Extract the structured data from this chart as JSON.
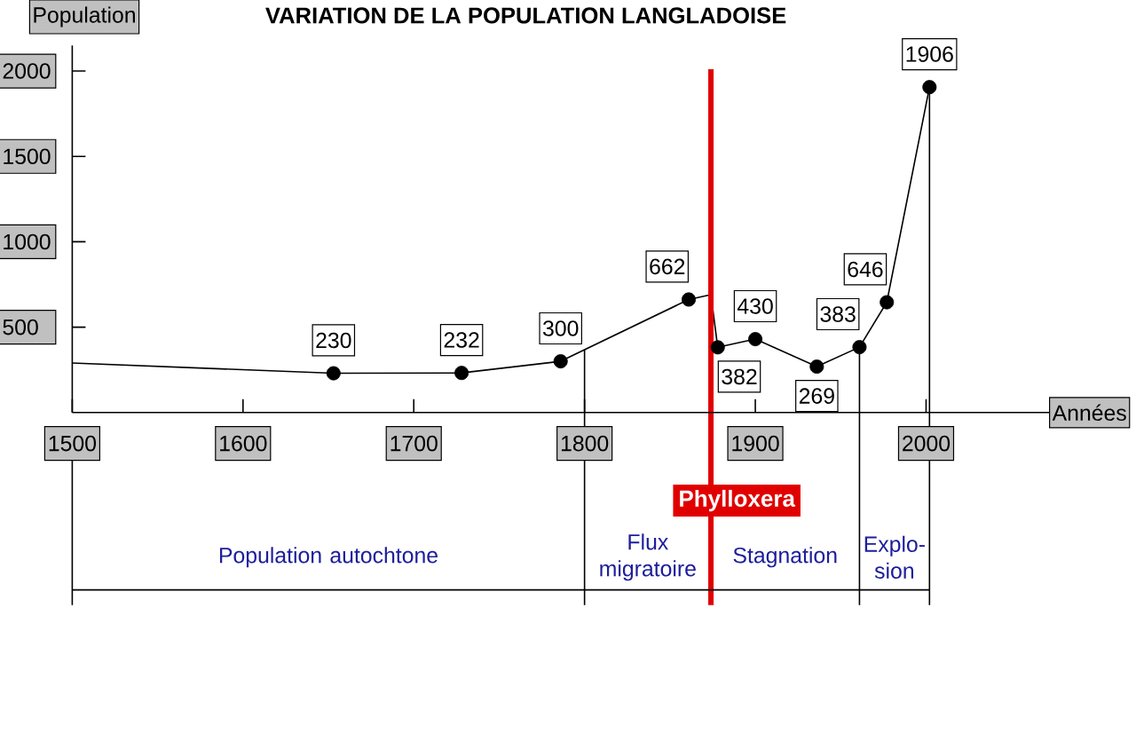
{
  "chart_data": {
    "type": "line",
    "title": "VARIATION DE LA POPULATION LANGLADOISE",
    "xlabel": "Années",
    "ylabel": "Population",
    "x": [
      1500,
      1653,
      1728,
      1786,
      1861,
      1874,
      1878,
      1900,
      1936,
      1961,
      1977,
      2002
    ],
    "series": [
      {
        "color": "#000000",
        "values": [
          290,
          230,
          232,
          300,
          662,
          690,
          382,
          430,
          269,
          383,
          646,
          1906
        ],
        "value_labels": [
          null,
          "230",
          "232",
          "300",
          "662",
          null,
          "382",
          "430",
          "269",
          "383",
          "646",
          "1906"
        ]
      }
    ],
    "marker": "circle",
    "xlim": [
      1500,
      2072
    ],
    "xticks": [
      1500,
      1600,
      1700,
      1800,
      1900,
      2000
    ],
    "ylim": [
      0,
      2150
    ],
    "yticks": [
      500,
      1000,
      1500,
      2000
    ],
    "ref_lines": [
      {
        "axis": "x",
        "value": 1800,
        "color": "#000000"
      },
      {
        "axis": "x",
        "value": 1874,
        "label": "Phylloxera",
        "color": "#e00000"
      },
      {
        "axis": "x",
        "value": 1961,
        "color": "#000000"
      },
      {
        "axis": "x",
        "value": 2002,
        "color": "#000000"
      }
    ],
    "annotations": [
      "Population autochtone",
      "Flux migratoire",
      "Stagnation",
      "Explo-sion"
    ]
  }
}
